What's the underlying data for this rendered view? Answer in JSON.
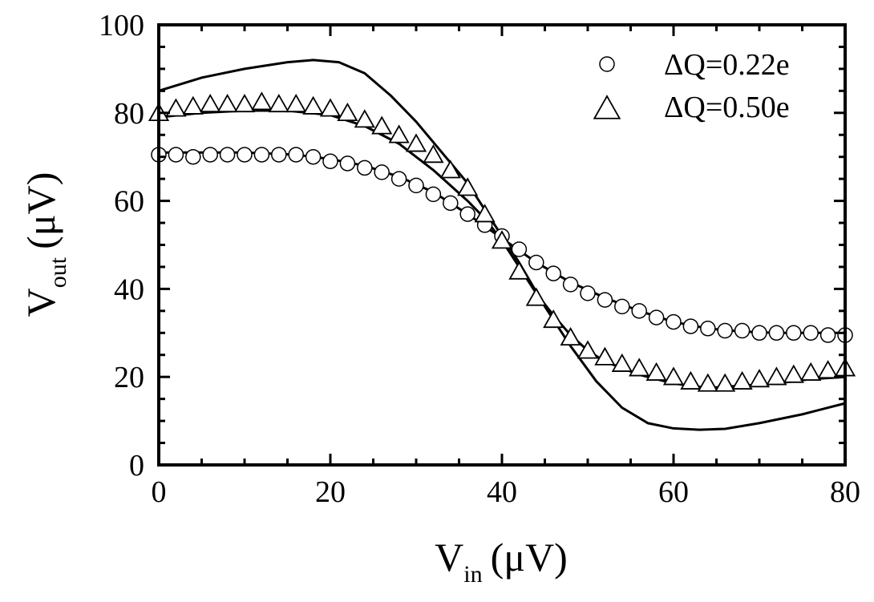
{
  "chart_data": {
    "type": "scatter",
    "title": "",
    "xlabel": {
      "main": "V",
      "sub": "in",
      "unit": "(μV)"
    },
    "ylabel": {
      "main": "V",
      "sub": "out",
      "unit": "(μV)"
    },
    "xlim": [
      0,
      80
    ],
    "ylim": [
      0,
      100
    ],
    "xticks": [
      0,
      20,
      40,
      60,
      80
    ],
    "yticks": [
      0,
      20,
      40,
      60,
      80,
      100
    ],
    "minor_tick_step": 5,
    "grid": false,
    "legend_placement": "top-right",
    "series": [
      {
        "name": "ΔQ=0.22e",
        "marker": "circle",
        "x": [
          0,
          2,
          4,
          6,
          8,
          10,
          12,
          14,
          16,
          18,
          20,
          22,
          24,
          26,
          28,
          30,
          32,
          34,
          36,
          38,
          40,
          42,
          44,
          46,
          48,
          50,
          52,
          54,
          56,
          58,
          60,
          62,
          64,
          66,
          68,
          70,
          72,
          74,
          76,
          78,
          80
        ],
        "y": [
          70.5,
          70.5,
          70,
          70.5,
          70.5,
          70.5,
          70.5,
          70.5,
          70.5,
          70,
          69,
          68.5,
          67.5,
          66.5,
          65,
          63.5,
          61.5,
          59.5,
          57,
          54.5,
          52,
          49,
          46,
          43.5,
          41,
          39,
          37.5,
          36,
          35,
          33.5,
          32.5,
          31.5,
          31,
          30.5,
          30.5,
          30,
          30,
          30,
          30,
          29.5,
          29.5
        ]
      },
      {
        "name": "ΔQ=0.50e",
        "marker": "triangle",
        "x": [
          0,
          2,
          4,
          6,
          8,
          10,
          12,
          14,
          16,
          18,
          20,
          22,
          24,
          26,
          28,
          30,
          32,
          34,
          36,
          38,
          40,
          42,
          44,
          46,
          48,
          50,
          52,
          54,
          56,
          58,
          60,
          62,
          64,
          66,
          68,
          70,
          72,
          74,
          76,
          78,
          80
        ],
        "y": [
          80,
          81,
          81.5,
          82,
          82,
          82,
          82.5,
          82,
          82,
          81.5,
          81,
          80,
          78.5,
          77,
          75,
          73,
          70.5,
          67,
          63,
          57,
          51,
          44,
          38,
          33,
          29,
          26,
          24.5,
          23,
          22,
          21,
          20,
          19,
          18.5,
          18.5,
          19,
          19.5,
          20,
          20.5,
          21,
          21.5,
          22
        ]
      }
    ],
    "lines": [
      {
        "x": [
          0,
          10,
          16,
          20,
          24,
          28,
          32,
          36,
          40,
          44,
          48,
          52,
          56,
          60,
          64,
          68,
          72,
          76,
          80
        ],
        "y": [
          71,
          71,
          70.5,
          69.5,
          68,
          65.5,
          62,
          57,
          51.5,
          46,
          41.5,
          38,
          35,
          32.5,
          31,
          30.3,
          30,
          30,
          30
        ]
      },
      {
        "x": [
          0,
          5,
          10,
          15,
          20,
          24,
          28,
          32,
          36,
          38,
          40,
          42,
          44,
          46,
          48,
          50,
          52,
          56,
          60,
          64,
          68,
          72,
          76,
          80
        ],
        "y": [
          79,
          80,
          80.5,
          80.5,
          79.5,
          77,
          73,
          67,
          60,
          56,
          51,
          45,
          39,
          34,
          29.5,
          26,
          23.5,
          20.5,
          18.5,
          17.5,
          18,
          18.5,
          19.5,
          20
        ]
      },
      {
        "x": [
          0,
          5,
          10,
          15,
          18,
          21,
          24,
          27,
          30,
          33,
          36,
          39,
          42,
          45,
          48,
          51,
          54,
          57,
          60,
          63,
          66,
          70,
          75,
          80
        ],
        "y": [
          85,
          88,
          90,
          91.5,
          92,
          91.5,
          89,
          84,
          78,
          71,
          64,
          55,
          46,
          36,
          27,
          19,
          13,
          9.5,
          8.3,
          8,
          8.2,
          9.5,
          11.5,
          14
        ]
      }
    ],
    "colors": {
      "axis": "#000000",
      "marker_fill": "#ffffff",
      "line": "#000000"
    }
  }
}
